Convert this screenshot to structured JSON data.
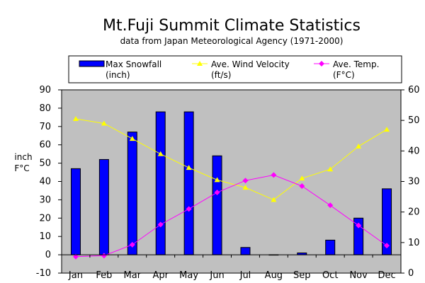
{
  "chart_data": {
    "type": "bar",
    "title": "Mt.Fuji Summit Climate Statistics",
    "subtitle": "data from Japan Meteorological Agency (1971-2000)",
    "ylabel_lines": [
      "inch",
      "F°C"
    ],
    "categories": [
      "Jan",
      "Feb",
      "Mar",
      "Apr",
      "May",
      "Jun",
      "Jul",
      "Aug",
      "Sep",
      "Oct",
      "Nov",
      "Dec"
    ],
    "ylim_left": [
      -10,
      90
    ],
    "ylim_right": [
      0,
      60
    ],
    "yticks_left": [
      "-10",
      "0",
      "10",
      "20",
      "30",
      "40",
      "50",
      "60",
      "70",
      "80",
      "90"
    ],
    "yticks_right": [
      "0",
      "10",
      "20",
      "30",
      "40",
      "50",
      "60"
    ],
    "grid": false,
    "legend_position": "top",
    "series": [
      {
        "name": "Max Snowfall",
        "name2": "(inch)",
        "type": "bar",
        "axis": "left",
        "color": "#0000ff",
        "values": [
          47,
          52,
          67,
          78,
          78,
          54,
          4,
          0,
          1,
          8,
          20,
          36
        ]
      },
      {
        "name": "Ave. Wind Velocity",
        "name2": "(ft/s)",
        "type": "line",
        "marker": "triangle",
        "axis": "right",
        "color": "#ffff00",
        "values": [
          50.5,
          49,
          44,
          39,
          34.5,
          30.5,
          28,
          24,
          31,
          34,
          41.5,
          47
        ]
      },
      {
        "name": "Ave. Temp.",
        "name2": "(F°C)",
        "type": "line",
        "marker": "diamond",
        "axis": "left",
        "color": "#ff00ff",
        "values": [
          -1,
          -0.5,
          5.5,
          16.5,
          25,
          34,
          40.5,
          43.5,
          37.5,
          27,
          16,
          5
        ]
      }
    ]
  }
}
